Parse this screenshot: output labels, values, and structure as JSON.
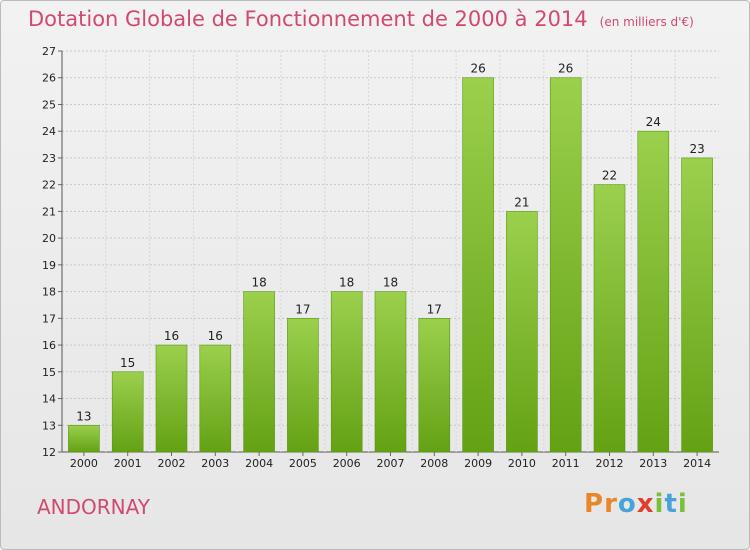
{
  "header": {
    "title": "Dotation Globale de Fonctionnement de 2000 à 2014",
    "subtitle": "(en milliers d'€)"
  },
  "footer": {
    "commune": "ANDORNAY",
    "logo_parts": [
      "P",
      "r",
      "o",
      "x",
      "i",
      "t",
      "i"
    ]
  },
  "colors": {
    "title": "#d14a6e",
    "bar_light": "#9bd04d",
    "bar_dark": "#64a114",
    "logo": [
      "#e8862a",
      "#e8862a",
      "#4aa3d8",
      "#e33d2e",
      "#7cbf3a",
      "#4aa3d8",
      "#7cbf3a"
    ]
  },
  "chart_data": {
    "type": "bar",
    "title": "Dotation Globale de Fonctionnement de 2000 à 2014",
    "subtitle": "(en milliers d'€)",
    "categories": [
      "2000",
      "2001",
      "2002",
      "2003",
      "2004",
      "2005",
      "2006",
      "2007",
      "2008",
      "2009",
      "2010",
      "2011",
      "2012",
      "2013",
      "2014"
    ],
    "values": [
      13,
      15,
      16,
      16,
      18,
      17,
      18,
      18,
      17,
      26,
      21,
      26,
      22,
      24,
      23
    ],
    "ylim": [
      12,
      27
    ],
    "yticks": [
      12,
      13,
      14,
      15,
      16,
      17,
      18,
      19,
      20,
      21,
      22,
      23,
      24,
      25,
      26,
      27
    ],
    "grid": true,
    "data_labels": true
  }
}
